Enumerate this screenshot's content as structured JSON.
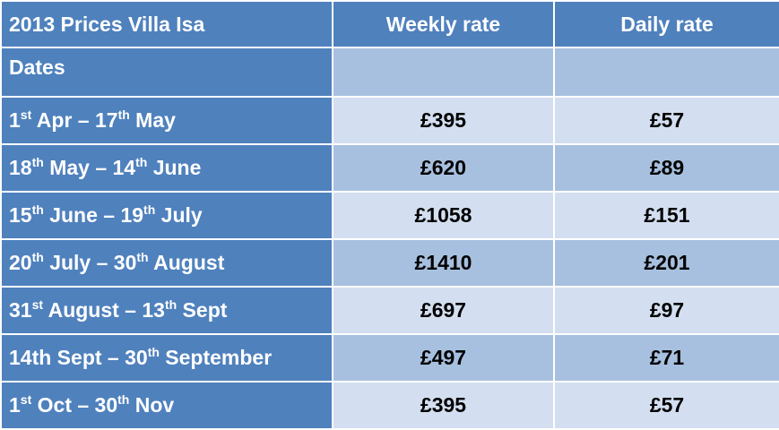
{
  "table": {
    "header": [
      "2013 Prices Villa Isa",
      "Weekly rate",
      "Daily rate"
    ],
    "subheader": "Dates",
    "rows": [
      {
        "date": [
          "1",
          "st",
          " Apr – 17",
          "th",
          " May"
        ],
        "weekly": "£395",
        "daily": "£57"
      },
      {
        "date": [
          "18",
          "th",
          " May – 14",
          "th",
          " June"
        ],
        "weekly": "£620",
        "daily": "£89"
      },
      {
        "date": [
          "15",
          "th",
          " June – 19",
          "th",
          " July"
        ],
        "weekly": "£1058",
        "daily": "£151"
      },
      {
        "date": [
          "20",
          "th",
          " July – 30",
          "th",
          " August"
        ],
        "weekly": "£1410",
        "daily": "£201"
      },
      {
        "date": [
          "31",
          "st",
          " August – 13",
          "th",
          " Sept"
        ],
        "weekly": "£697",
        "daily": "£97"
      },
      {
        "date": [
          "14th Sept – 30",
          "th",
          " September"
        ],
        "weekly": "£497",
        "daily": "£71"
      },
      {
        "date": [
          "1",
          "st",
          " Oct – 30",
          "th",
          " Nov"
        ],
        "weekly": "£395",
        "daily": "£57"
      }
    ]
  }
}
